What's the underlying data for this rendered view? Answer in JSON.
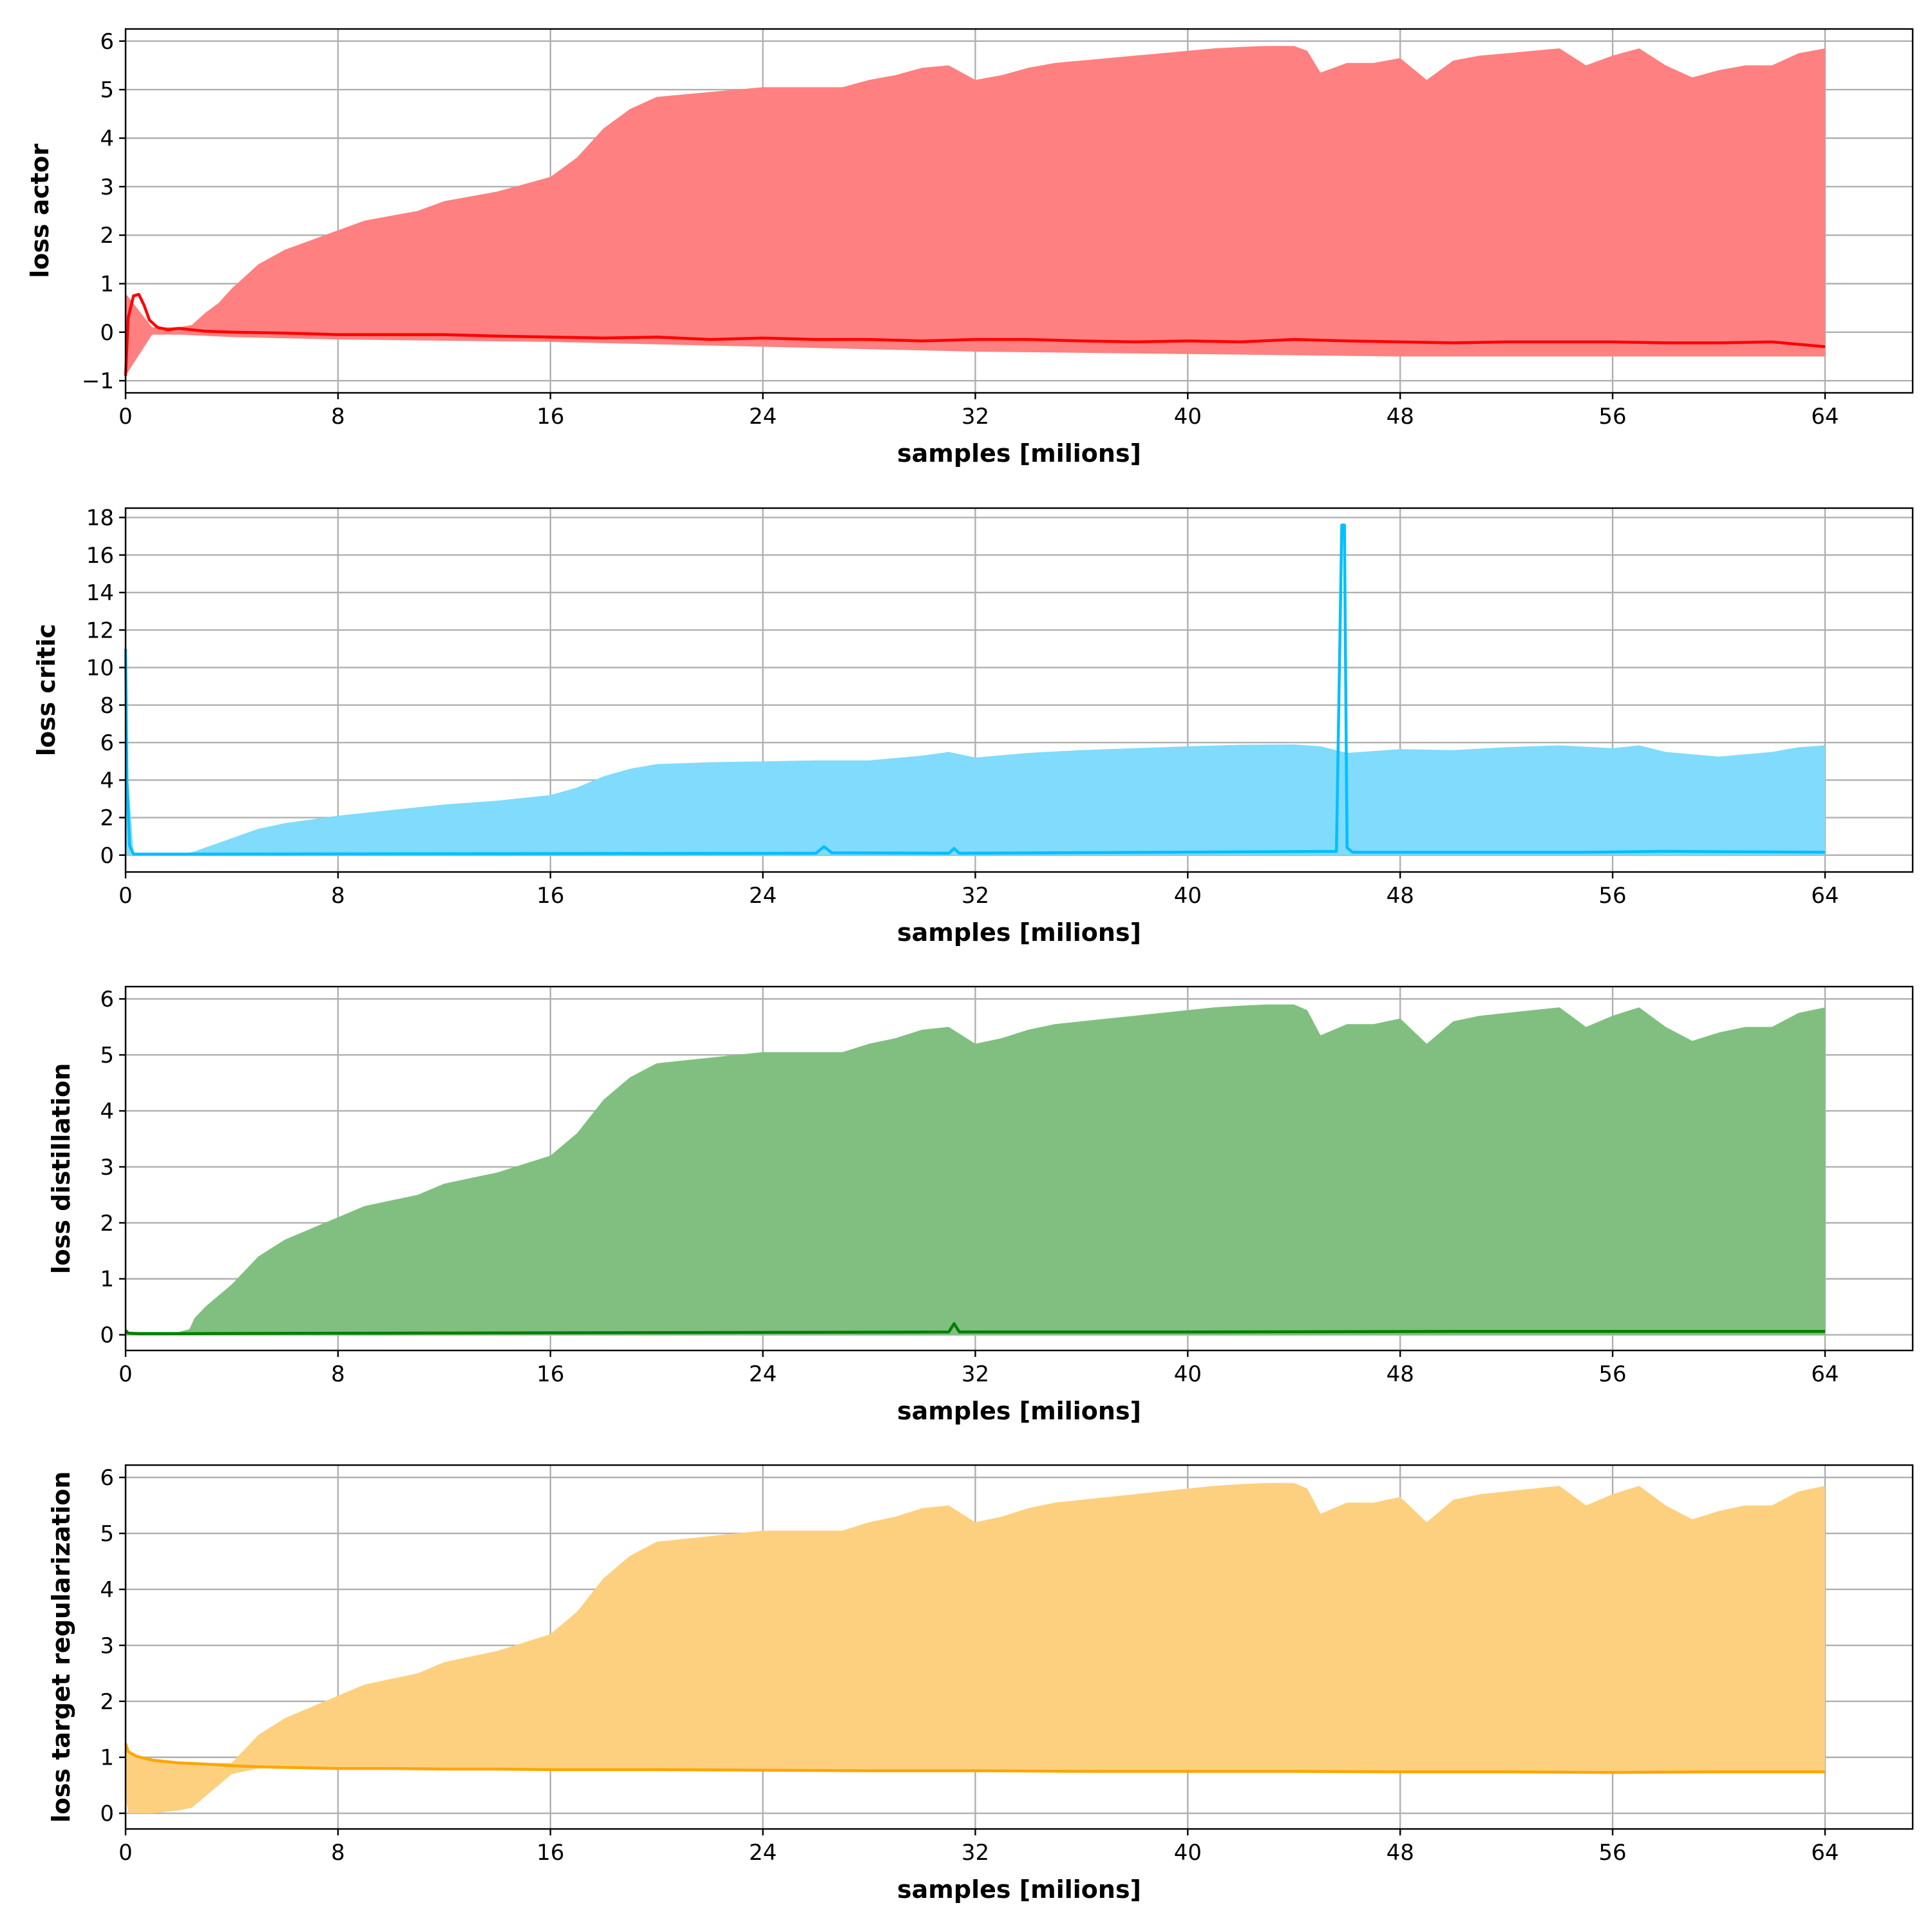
{
  "chart_data": [
    {
      "type": "area",
      "ylabel": "loss actor",
      "xlabel": "samples [milions]",
      "xlim": [
        0,
        67.3
      ],
      "ylim": [
        -1.25,
        6.25
      ],
      "x_ticks": [
        0,
        8,
        16,
        24,
        32,
        40,
        48,
        56,
        64
      ],
      "y_ticks": [
        -1,
        0,
        1,
        2,
        3,
        4,
        5,
        6
      ],
      "grid": true,
      "colors": {
        "band": "#ff8080",
        "line": "#ff0000"
      },
      "band_upper": {
        "x": [
          0,
          1,
          2,
          2.5,
          3,
          3.5,
          4,
          5,
          6,
          7,
          8,
          9,
          10,
          11,
          12,
          13,
          14,
          15,
          16,
          17,
          18,
          19,
          20,
          21,
          22,
          23,
          24,
          25,
          26,
          27,
          28,
          29,
          30,
          31,
          32,
          33,
          34,
          35,
          36,
          37,
          38,
          39,
          40,
          41,
          42,
          43,
          44,
          44.5,
          45,
          46,
          47,
          48,
          49,
          50,
          51,
          52,
          53,
          54,
          55,
          56,
          57,
          58,
          59,
          60,
          61,
          62,
          63,
          64
        ],
        "y": [
          0.8,
          0.1,
          0.1,
          0.15,
          0.4,
          0.6,
          0.9,
          1.4,
          1.7,
          1.9,
          2.1,
          2.3,
          2.4,
          2.5,
          2.7,
          2.8,
          2.9,
          3.05,
          3.2,
          3.6,
          4.2,
          4.6,
          4.85,
          4.9,
          4.95,
          5.0,
          5.05,
          5.05,
          5.05,
          5.05,
          5.2,
          5.3,
          5.45,
          5.5,
          5.2,
          5.3,
          5.45,
          5.55,
          5.6,
          5.65,
          5.7,
          5.75,
          5.8,
          5.85,
          5.88,
          5.9,
          5.9,
          5.8,
          5.35,
          5.55,
          5.55,
          5.65,
          5.2,
          5.6,
          5.7,
          5.75,
          5.8,
          5.85,
          5.5,
          5.7,
          5.85,
          5.5,
          5.25,
          5.4,
          5.5,
          5.5,
          5.75,
          5.85
        ]
      },
      "band_lower": {
        "x": [
          0,
          1,
          2,
          4,
          8,
          16,
          24,
          32,
          40,
          48,
          56,
          64
        ],
        "y": [
          -0.9,
          -0.05,
          -0.05,
          -0.1,
          -0.15,
          -0.2,
          -0.3,
          -0.4,
          -0.45,
          -0.5,
          -0.5,
          -0.5
        ]
      },
      "line": {
        "x": [
          0,
          0.1,
          0.3,
          0.5,
          0.7,
          0.9,
          1.2,
          1.6,
          2,
          3,
          4,
          6,
          8,
          10,
          12,
          14,
          16,
          18,
          20,
          22,
          24,
          26,
          28,
          30,
          32,
          34,
          36,
          38,
          40,
          42,
          44,
          46,
          48,
          50,
          52,
          54,
          56,
          58,
          60,
          62,
          64
        ],
        "y": [
          -0.9,
          0.3,
          0.75,
          0.78,
          0.55,
          0.25,
          0.1,
          0.05,
          0.08,
          0.02,
          0.0,
          -0.02,
          -0.05,
          -0.05,
          -0.05,
          -0.08,
          -0.1,
          -0.12,
          -0.1,
          -0.15,
          -0.12,
          -0.15,
          -0.15,
          -0.18,
          -0.15,
          -0.15,
          -0.18,
          -0.2,
          -0.18,
          -0.2,
          -0.15,
          -0.18,
          -0.2,
          -0.22,
          -0.2,
          -0.2,
          -0.2,
          -0.22,
          -0.22,
          -0.2,
          -0.3
        ]
      }
    },
    {
      "type": "area",
      "ylabel": "loss critic",
      "xlabel": "samples [milions]",
      "xlim": [
        0,
        67.3
      ],
      "ylim": [
        -0.9,
        18.5
      ],
      "x_ticks": [
        0,
        8,
        16,
        24,
        32,
        40,
        48,
        56,
        64
      ],
      "y_ticks": [
        0,
        2,
        4,
        6,
        8,
        10,
        12,
        14,
        16,
        18
      ],
      "grid": true,
      "colors": {
        "band": "#80dbfc",
        "line": "#00bfff"
      },
      "band_upper": {
        "x": [
          0,
          0.1,
          0.3,
          2,
          2.5,
          3,
          4,
          5,
          6,
          7,
          8,
          10,
          12,
          14,
          16,
          17,
          18,
          19,
          20,
          22,
          24,
          26,
          28,
          30,
          31,
          32,
          34,
          36,
          38,
          40,
          42,
          44,
          45,
          46,
          47,
          48,
          50,
          52,
          54,
          56,
          57,
          58,
          60,
          62,
          63,
          64
        ],
        "y": [
          11,
          4,
          0.1,
          0.1,
          0.15,
          0.4,
          0.9,
          1.4,
          1.7,
          1.9,
          2.1,
          2.4,
          2.7,
          2.9,
          3.2,
          3.6,
          4.2,
          4.6,
          4.85,
          4.95,
          5.0,
          5.05,
          5.05,
          5.3,
          5.5,
          5.2,
          5.45,
          5.6,
          5.7,
          5.8,
          5.88,
          5.9,
          5.8,
          5.45,
          5.55,
          5.65,
          5.6,
          5.75,
          5.85,
          5.7,
          5.85,
          5.5,
          5.25,
          5.5,
          5.75,
          5.85
        ]
      },
      "band_lower": {
        "x": [
          0,
          64
        ],
        "y": [
          0,
          0
        ]
      },
      "line": {
        "x": [
          0,
          0.05,
          0.15,
          0.3,
          1,
          26,
          26.3,
          26.6,
          31,
          31.2,
          31.4,
          45.6,
          45.8,
          45.9,
          46.0,
          46.2,
          50,
          55,
          58,
          64
        ],
        "y": [
          11,
          4,
          0.5,
          0.05,
          0.05,
          0.1,
          0.45,
          0.12,
          0.1,
          0.35,
          0.1,
          0.2,
          17.6,
          17.6,
          0.4,
          0.15,
          0.15,
          0.15,
          0.2,
          0.15
        ]
      }
    },
    {
      "type": "area",
      "ylabel": "loss distillation",
      "xlabel": "samples [milions]",
      "xlim": [
        0,
        67.3
      ],
      "ylim": [
        -0.28,
        6.22
      ],
      "x_ticks": [
        0,
        8,
        16,
        24,
        32,
        40,
        48,
        56,
        64
      ],
      "y_ticks": [
        0,
        1,
        2,
        3,
        4,
        5,
        6
      ],
      "grid": true,
      "colors": {
        "band": "#80bf80",
        "line": "#008000"
      },
      "band_upper": {
        "x": [
          0,
          0.1,
          1,
          2,
          2.4,
          2.6,
          3,
          3.5,
          4,
          5,
          6,
          7,
          8,
          9,
          10,
          11,
          12,
          13,
          14,
          15,
          16,
          17,
          18,
          19,
          20,
          21,
          22,
          23,
          24,
          25,
          26,
          27,
          28,
          29,
          30,
          31,
          32,
          33,
          34,
          35,
          36,
          37,
          38,
          39,
          40,
          41,
          42,
          43,
          44,
          44.5,
          45,
          46,
          47,
          48,
          49,
          50,
          51,
          52,
          53,
          54,
          55,
          56,
          57,
          58,
          59,
          60,
          61,
          62,
          63,
          64
        ],
        "y": [
          0.1,
          0.05,
          0.05,
          0.05,
          0.1,
          0.3,
          0.5,
          0.7,
          0.9,
          1.4,
          1.7,
          1.9,
          2.1,
          2.3,
          2.4,
          2.5,
          2.7,
          2.8,
          2.9,
          3.05,
          3.2,
          3.6,
          4.2,
          4.6,
          4.85,
          4.9,
          4.95,
          5.0,
          5.05,
          5.05,
          5.05,
          5.05,
          5.2,
          5.3,
          5.45,
          5.5,
          5.2,
          5.3,
          5.45,
          5.55,
          5.6,
          5.65,
          5.7,
          5.75,
          5.8,
          5.85,
          5.88,
          5.9,
          5.9,
          5.8,
          5.35,
          5.55,
          5.55,
          5.65,
          5.2,
          5.6,
          5.7,
          5.75,
          5.8,
          5.85,
          5.5,
          5.7,
          5.85,
          5.5,
          5.25,
          5.4,
          5.5,
          5.5,
          5.75,
          5.85
        ]
      },
      "band_lower": {
        "x": [
          0,
          64
        ],
        "y": [
          0,
          0
        ]
      },
      "line": {
        "x": [
          0,
          0.1,
          0.5,
          10,
          20,
          31,
          31.2,
          31.4,
          40,
          50,
          64
        ],
        "y": [
          0.08,
          0.03,
          0.02,
          0.03,
          0.04,
          0.05,
          0.2,
          0.05,
          0.05,
          0.06,
          0.06
        ]
      }
    },
    {
      "type": "area",
      "ylabel": "loss target regularization",
      "xlabel": "samples [milions]",
      "xlim": [
        0,
        67.3
      ],
      "ylim": [
        -0.28,
        6.22
      ],
      "x_ticks": [
        0,
        8,
        16,
        24,
        32,
        40,
        48,
        56,
        64
      ],
      "y_ticks": [
        0,
        1,
        2,
        3,
        4,
        5,
        6
      ],
      "grid": true,
      "colors": {
        "band": "#fdd080",
        "line": "#ffa500"
      },
      "band_upper": {
        "x": [
          0,
          0.1,
          1,
          2,
          2.5,
          3,
          4,
          5,
          6,
          7,
          8,
          9,
          10,
          11,
          12,
          13,
          14,
          15,
          16,
          17,
          18,
          19,
          20,
          21,
          22,
          23,
          24,
          25,
          26,
          27,
          28,
          29,
          30,
          31,
          32,
          33,
          34,
          35,
          36,
          37,
          38,
          39,
          40,
          41,
          42,
          43,
          44,
          44.5,
          45,
          46,
          47,
          48,
          49,
          50,
          51,
          52,
          53,
          54,
          55,
          56,
          57,
          58,
          59,
          60,
          61,
          62,
          63,
          64
        ],
        "y": [
          1.25,
          1.1,
          0.95,
          0.9,
          0.9,
          0.9,
          0.9,
          1.4,
          1.7,
          1.9,
          2.1,
          2.3,
          2.4,
          2.5,
          2.7,
          2.8,
          2.9,
          3.05,
          3.2,
          3.6,
          4.2,
          4.6,
          4.85,
          4.9,
          4.95,
          5.0,
          5.05,
          5.05,
          5.05,
          5.05,
          5.2,
          5.3,
          5.45,
          5.5,
          5.2,
          5.3,
          5.45,
          5.55,
          5.6,
          5.65,
          5.7,
          5.75,
          5.8,
          5.85,
          5.88,
          5.9,
          5.9,
          5.8,
          5.35,
          5.55,
          5.55,
          5.65,
          5.2,
          5.6,
          5.7,
          5.75,
          5.8,
          5.85,
          5.5,
          5.7,
          5.85,
          5.5,
          5.25,
          5.4,
          5.5,
          5.5,
          5.75,
          5.85
        ]
      },
      "band_lower": {
        "x": [
          0,
          0.1,
          1,
          2,
          2.5,
          3,
          3.5,
          4,
          5,
          64
        ],
        "y": [
          0.3,
          0,
          0,
          0.05,
          0.1,
          0.3,
          0.5,
          0.7,
          0.8,
          0.75
        ]
      },
      "line": {
        "x": [
          0,
          0.1,
          0.4,
          1,
          2,
          3,
          4,
          5,
          6,
          8,
          10,
          12,
          14,
          16,
          20,
          24,
          28,
          32,
          36,
          40,
          44,
          48,
          52,
          56,
          60,
          64
        ],
        "y": [
          1.25,
          1.1,
          1.02,
          0.95,
          0.9,
          0.88,
          0.85,
          0.83,
          0.82,
          0.8,
          0.8,
          0.79,
          0.79,
          0.78,
          0.78,
          0.77,
          0.76,
          0.76,
          0.75,
          0.75,
          0.75,
          0.74,
          0.74,
          0.73,
          0.74,
          0.74
        ]
      }
    }
  ]
}
